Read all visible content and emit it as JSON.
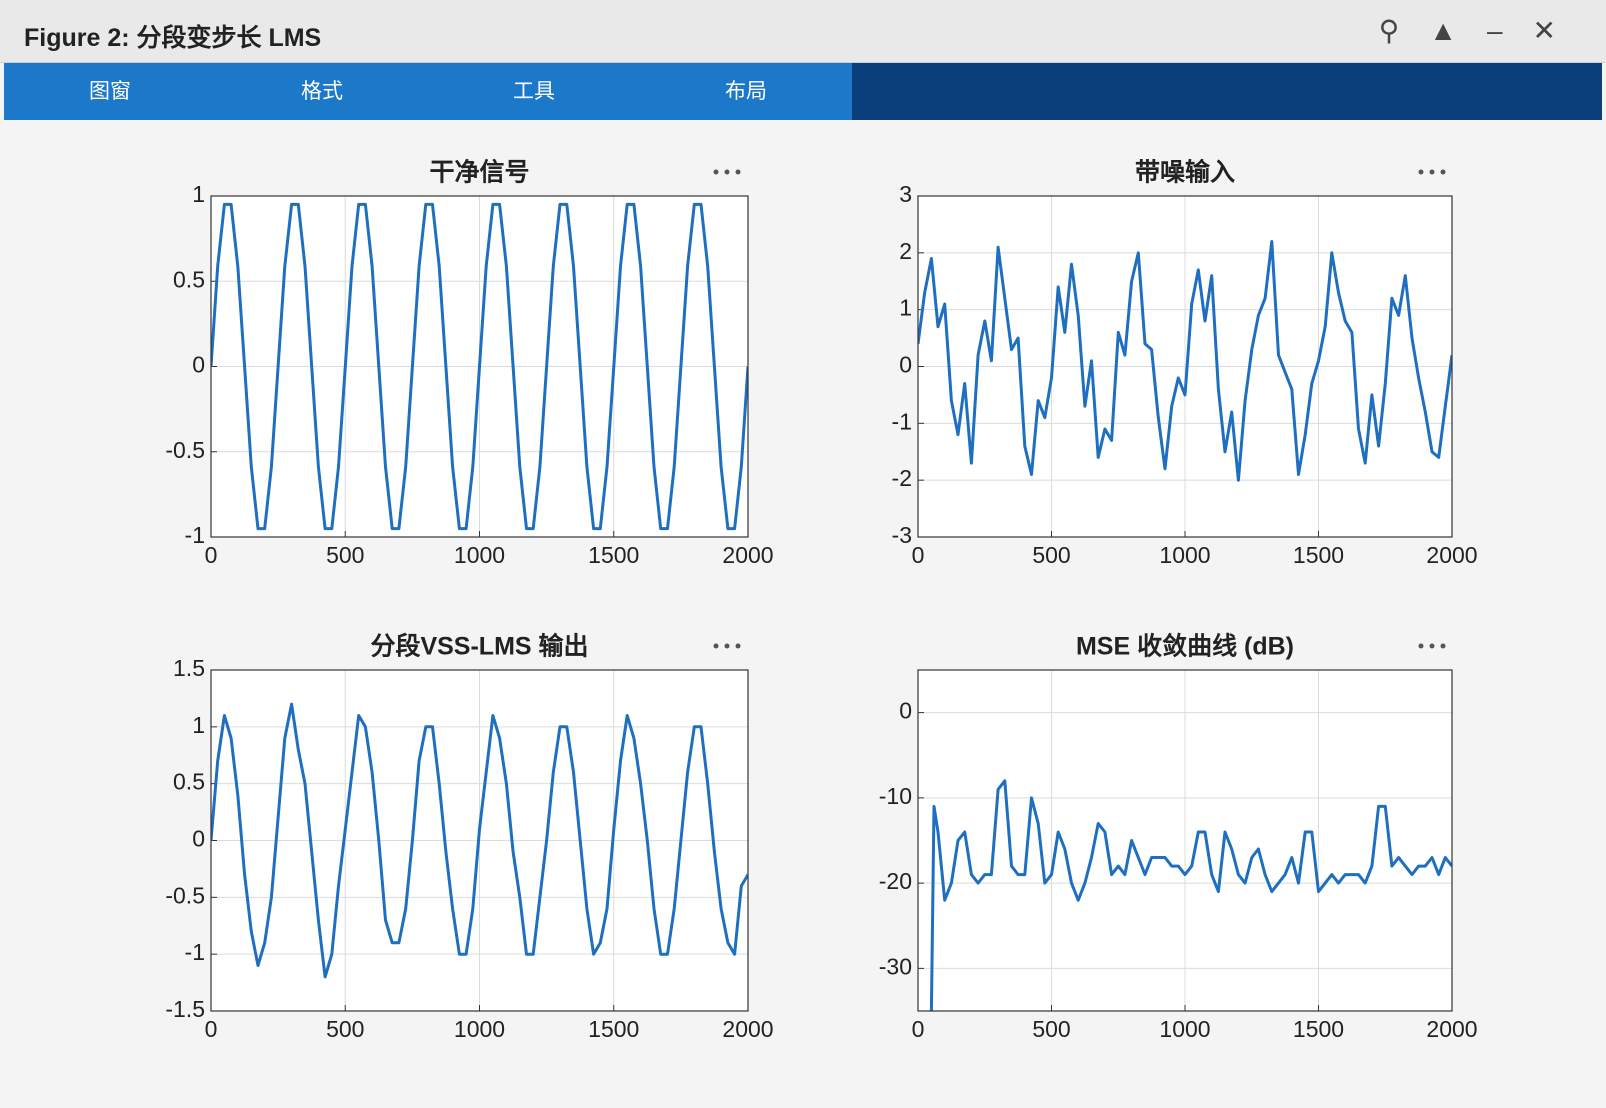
{
  "window": {
    "title": "Figure 2: 分段变步长 LMS",
    "menu": [
      "图窗",
      "格式",
      "工具",
      "布局"
    ]
  },
  "chart_data": [
    {
      "type": "line",
      "title": "干净信号",
      "color": "#1f6fc0",
      "grid": true,
      "xlim": [
        0,
        2000
      ],
      "xticks": [
        0,
        500,
        1000,
        1500,
        2000
      ],
      "ylim": [
        -1,
        1
      ],
      "yticks": [
        -1,
        -0.5,
        0,
        0.5,
        1
      ],
      "x": [
        0,
        25,
        50,
        75,
        100,
        125,
        150,
        175,
        200,
        225,
        250,
        275,
        300,
        325,
        350,
        375,
        400,
        425,
        450,
        475,
        500,
        525,
        550,
        575,
        600,
        625,
        650,
        675,
        700,
        725,
        750,
        775,
        800,
        825,
        850,
        875,
        900,
        925,
        950,
        975,
        1000,
        1025,
        1050,
        1075,
        1100,
        1125,
        1150,
        1175,
        1200,
        1225,
        1250,
        1275,
        1300,
        1325,
        1350,
        1375,
        1400,
        1425,
        1450,
        1475,
        1500,
        1525,
        1550,
        1575,
        1600,
        1625,
        1650,
        1675,
        1700,
        1725,
        1750,
        1775,
        1800,
        1825,
        1850,
        1875,
        1900,
        1925,
        1950,
        1975,
        2000
      ],
      "values": [
        0,
        0.588,
        0.951,
        0.951,
        0.588,
        0,
        -0.588,
        -0.951,
        -0.951,
        -0.588,
        0,
        0.588,
        0.951,
        0.951,
        0.588,
        0,
        -0.588,
        -0.951,
        -0.951,
        -0.588,
        0,
        0.588,
        0.951,
        0.951,
        0.588,
        0,
        -0.588,
        -0.951,
        -0.951,
        -0.588,
        0,
        0.588,
        0.951,
        0.951,
        0.588,
        0,
        -0.588,
        -0.951,
        -0.951,
        -0.588,
        0,
        0.588,
        0.951,
        0.951,
        0.588,
        0,
        -0.588,
        -0.951,
        -0.951,
        -0.588,
        0,
        0.588,
        0.951,
        0.951,
        0.588,
        0,
        -0.588,
        -0.951,
        -0.951,
        -0.588,
        0,
        0.588,
        0.951,
        0.951,
        0.588,
        0,
        -0.588,
        -0.951,
        -0.951,
        -0.588,
        0,
        0.588,
        0.951,
        0.951,
        0.588,
        0,
        -0.588,
        -0.951,
        -0.951,
        -0.588,
        0
      ]
    },
    {
      "type": "line",
      "title": "带噪输入",
      "color": "#1f6fc0",
      "grid": true,
      "xlim": [
        0,
        2000
      ],
      "xticks": [
        0,
        500,
        1000,
        1500,
        2000
      ],
      "ylim": [
        -3,
        3
      ],
      "yticks": [
        -3,
        -2,
        -1,
        0,
        1,
        2,
        3
      ],
      "x": [
        0,
        25,
        50,
        75,
        100,
        125,
        150,
        175,
        200,
        225,
        250,
        275,
        300,
        325,
        350,
        375,
        400,
        425,
        450,
        475,
        500,
        525,
        550,
        575,
        600,
        625,
        650,
        675,
        700,
        725,
        750,
        775,
        800,
        825,
        850,
        875,
        900,
        925,
        950,
        975,
        1000,
        1025,
        1050,
        1075,
        1100,
        1125,
        1150,
        1175,
        1200,
        1225,
        1250,
        1275,
        1300,
        1325,
        1350,
        1375,
        1400,
        1425,
        1450,
        1475,
        1500,
        1525,
        1550,
        1575,
        1600,
        1625,
        1650,
        1675,
        1700,
        1725,
        1750,
        1775,
        1800,
        1825,
        1850,
        1875,
        1900,
        1925,
        1950,
        1975,
        2000
      ],
      "values": [
        0.4,
        1.3,
        1.9,
        0.7,
        1.1,
        -0.6,
        -1.2,
        -0.3,
        -1.7,
        0.2,
        0.8,
        0.1,
        2.1,
        1.2,
        0.3,
        0.5,
        -1.4,
        -1.9,
        -0.6,
        -0.9,
        -0.2,
        1.4,
        0.6,
        1.8,
        0.9,
        -0.7,
        0.1,
        -1.6,
        -1.1,
        -1.3,
        0.6,
        0.2,
        1.5,
        2.0,
        0.4,
        0.3,
        -0.9,
        -1.8,
        -0.7,
        -0.2,
        -0.5,
        1.1,
        1.7,
        0.8,
        1.6,
        -0.4,
        -1.5,
        -0.8,
        -2.0,
        -0.6,
        0.3,
        0.9,
        1.2,
        2.2,
        0.2,
        -0.1,
        -0.4,
        -1.9,
        -1.2,
        -0.3,
        0.1,
        0.7,
        2.0,
        1.3,
        0.8,
        0.6,
        -1.1,
        -1.7,
        -0.5,
        -1.4,
        -0.3,
        1.2,
        0.9,
        1.6,
        0.5,
        -0.2,
        -0.8,
        -1.5,
        -1.6,
        -0.7,
        0.2
      ]
    },
    {
      "type": "line",
      "title": "分段VSS-LMS 输出",
      "color": "#1f6fc0",
      "grid": true,
      "xlim": [
        0,
        2000
      ],
      "xticks": [
        0,
        500,
        1000,
        1500,
        2000
      ],
      "ylim": [
        -1.5,
        1.5
      ],
      "yticks": [
        -1.5,
        -1,
        -0.5,
        0,
        0.5,
        1,
        1.5
      ],
      "x": [
        0,
        25,
        50,
        75,
        100,
        125,
        150,
        175,
        200,
        225,
        250,
        275,
        300,
        325,
        350,
        375,
        400,
        425,
        450,
        475,
        500,
        525,
        550,
        575,
        600,
        625,
        650,
        675,
        700,
        725,
        750,
        775,
        800,
        825,
        850,
        875,
        900,
        925,
        950,
        975,
        1000,
        1025,
        1050,
        1075,
        1100,
        1125,
        1150,
        1175,
        1200,
        1225,
        1250,
        1275,
        1300,
        1325,
        1350,
        1375,
        1400,
        1425,
        1450,
        1475,
        1500,
        1525,
        1550,
        1575,
        1600,
        1625,
        1650,
        1675,
        1700,
        1725,
        1750,
        1775,
        1800,
        1825,
        1850,
        1875,
        1900,
        1925,
        1950,
        1975,
        2000
      ],
      "values": [
        0,
        0.7,
        1.1,
        0.9,
        0.4,
        -0.3,
        -0.8,
        -1.1,
        -0.9,
        -0.5,
        0.2,
        0.9,
        1.2,
        0.8,
        0.5,
        -0.1,
        -0.7,
        -1.2,
        -1.0,
        -0.4,
        0.1,
        0.6,
        1.1,
        1.0,
        0.6,
        0.0,
        -0.7,
        -0.9,
        -0.9,
        -0.6,
        0.0,
        0.7,
        1.0,
        1.0,
        0.5,
        -0.1,
        -0.6,
        -1.0,
        -1.0,
        -0.6,
        0.1,
        0.6,
        1.1,
        0.9,
        0.5,
        -0.1,
        -0.5,
        -1.0,
        -1.0,
        -0.5,
        0.0,
        0.6,
        1.0,
        1.0,
        0.6,
        0.0,
        -0.6,
        -1.0,
        -0.9,
        -0.6,
        0.1,
        0.7,
        1.1,
        0.9,
        0.5,
        0.0,
        -0.6,
        -1.0,
        -1.0,
        -0.6,
        0.0,
        0.6,
        1.0,
        1.0,
        0.5,
        -0.1,
        -0.6,
        -0.9,
        -1.0,
        -0.4,
        -0.3
      ]
    },
    {
      "type": "line",
      "title": "MSE 收敛曲线 (dB)",
      "color": "#1f6fc0",
      "grid": true,
      "xlim": [
        0,
        2000
      ],
      "xticks": [
        0,
        500,
        1000,
        1500,
        2000
      ],
      "ylim": [
        -35,
        5
      ],
      "yticks": [
        -30,
        -20,
        -10,
        0
      ],
      "x": [
        50,
        60,
        75,
        100,
        125,
        150,
        175,
        200,
        225,
        250,
        275,
        300,
        325,
        350,
        375,
        400,
        425,
        450,
        475,
        500,
        525,
        550,
        575,
        600,
        625,
        650,
        675,
        700,
        725,
        750,
        775,
        800,
        825,
        850,
        875,
        900,
        925,
        950,
        975,
        1000,
        1025,
        1050,
        1075,
        1100,
        1125,
        1150,
        1175,
        1200,
        1225,
        1250,
        1275,
        1300,
        1325,
        1350,
        1375,
        1400,
        1425,
        1450,
        1475,
        1500,
        1525,
        1550,
        1575,
        1600,
        1625,
        1650,
        1675,
        1700,
        1725,
        1750,
        1775,
        1800,
        1825,
        1850,
        1875,
        1900,
        1925,
        1950,
        1975,
        2000
      ],
      "values": [
        -35,
        -11,
        -14,
        -22,
        -20,
        -15,
        -14,
        -19,
        -20,
        -19,
        -19,
        -9,
        -8,
        -18,
        -19,
        -19,
        -10,
        -13,
        -20,
        -19,
        -14,
        -16,
        -20,
        -22,
        -20,
        -17,
        -13,
        -14,
        -19,
        -18,
        -19,
        -15,
        -17,
        -19,
        -17,
        -17,
        -17,
        -18,
        -18,
        -19,
        -18,
        -14,
        -14,
        -19,
        -21,
        -14,
        -16,
        -19,
        -20,
        -17,
        -16,
        -19,
        -21,
        -20,
        -19,
        -17,
        -20,
        -14,
        -14,
        -21,
        -20,
        -19,
        -20,
        -19,
        -19,
        -19,
        -20,
        -18,
        -11,
        -11,
        -18,
        -17,
        -18,
        -19,
        -18,
        -18,
        -17,
        -19,
        -17,
        -18
      ]
    }
  ]
}
